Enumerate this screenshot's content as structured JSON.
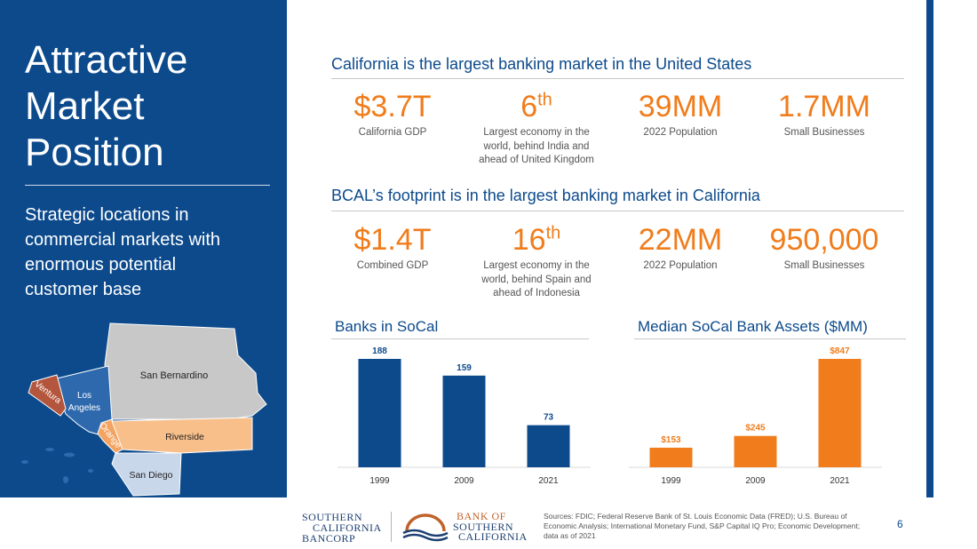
{
  "sidebar": {
    "title_lines": [
      "Attractive",
      "Market",
      "Position"
    ],
    "subtitle_lines": [
      "Strategic locations in",
      "commercial markets with",
      "enormous potential",
      "customer base"
    ],
    "map": {
      "counties": [
        "San Bernardino",
        "Los Angeles",
        "Ventura",
        "Orange",
        "Riverside",
        "San Diego"
      ],
      "la_lines": [
        "Los",
        "Angeles"
      ]
    }
  },
  "california": {
    "heading": "California is the largest banking market in the United States",
    "stats": [
      {
        "value": "$3.7T",
        "sup": "",
        "label_lines": [
          "California GDP"
        ]
      },
      {
        "value": "6",
        "sup": "th",
        "label_lines": [
          "Largest economy in the",
          "world, behind India and",
          "ahead of United Kingdom"
        ]
      },
      {
        "value": "39MM",
        "sup": "",
        "label_lines": [
          "2022 Population"
        ]
      },
      {
        "value": "1.7MM",
        "sup": "",
        "label_lines": [
          "Small Businesses"
        ]
      }
    ]
  },
  "footprint": {
    "heading": "BCAL’s footprint is in the largest banking market in California",
    "stats": [
      {
        "value": "$1.4T",
        "sup": "",
        "label_lines": [
          "Combined GDP"
        ]
      },
      {
        "value": "16",
        "sup": "th",
        "label_lines": [
          "Largest economy in the",
          "world, behind Spain and",
          "ahead of Indonesia"
        ]
      },
      {
        "value": "22MM",
        "sup": "",
        "label_lines": [
          "2022 Population"
        ]
      },
      {
        "value": "950,000",
        "sup": "",
        "label_lines": [
          "Small Businesses"
        ]
      }
    ]
  },
  "chart_data": [
    {
      "type": "bar",
      "title": "Banks in SoCal",
      "categories": [
        "1999",
        "2009",
        "2021"
      ],
      "values": [
        188,
        159,
        73
      ],
      "data_labels": [
        "188",
        "159",
        "73"
      ],
      "color": "#0c4a8c",
      "label_color": "#0c4a8c",
      "ylim": [
        0,
        188
      ],
      "grid": false,
      "legend": "none"
    },
    {
      "type": "bar",
      "title": "Median SoCal Bank Assets ($MM)",
      "categories": [
        "1999",
        "2009",
        "2021"
      ],
      "values": [
        153,
        245,
        847
      ],
      "data_labels": [
        "$153",
        "$245",
        "$847"
      ],
      "color": "#f07c1b",
      "label_color": "#f07c1b",
      "ylim": [
        0,
        847
      ],
      "grid": false,
      "legend": "none"
    }
  ],
  "footer": {
    "scb_logo_lines": [
      "SOUTHERN",
      "CALIFORNIA",
      "BANCORP"
    ],
    "bosc_logo_lines": [
      "BANK OF",
      "SOUTHERN",
      "CALIFORNIA"
    ],
    "sources_lines": [
      "Sources: FDIC; Federal Reserve Bank of St. Louis Economic Data (FRED); U.S. Bureau of",
      "Economic Analysis; International Monetary Fund, S&P Capital IQ Pro; Economic Development;",
      "data as of 2021"
    ],
    "page_number": "6"
  },
  "colors": {
    "brand_blue": "#0c4a8c",
    "accent_orange": "#f07c1b"
  }
}
